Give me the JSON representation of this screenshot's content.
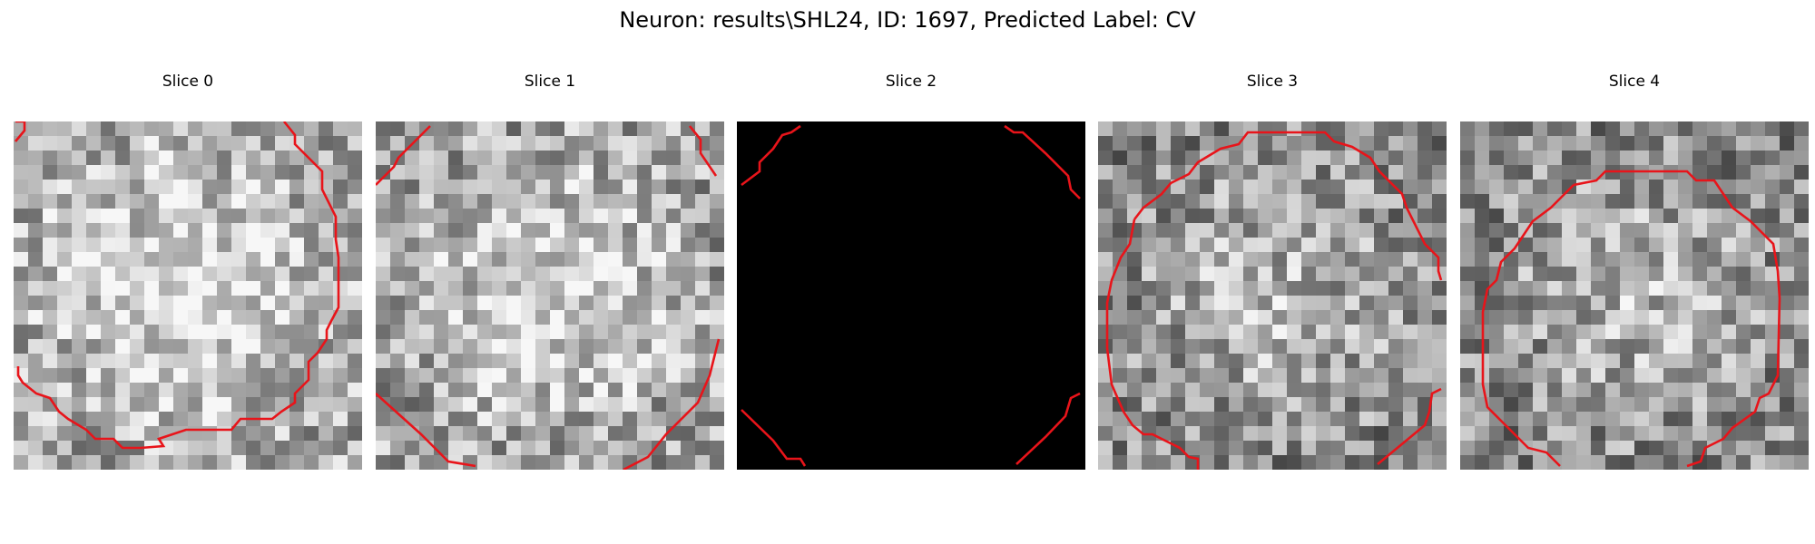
{
  "figure": {
    "title": "Neuron: results\\SHL24, ID: 1697, Predicted Label: CV"
  },
  "panels": [
    {
      "title": "Slice 0",
      "style": "noise",
      "seed": 11,
      "bright_center": 0.8
    },
    {
      "title": "Slice 1",
      "style": "noise",
      "seed": 23,
      "bright_center": 0.75
    },
    {
      "title": "Slice 2",
      "style": "black",
      "seed": 37,
      "bright_center": 0.0
    },
    {
      "title": "Slice 3",
      "style": "noise",
      "seed": 41,
      "bright_center": 0.6
    },
    {
      "title": "Slice 4",
      "style": "noise",
      "seed": 59,
      "bright_center": 0.6
    }
  ],
  "colors": {
    "contour": "#e8141a",
    "background": "#ffffff"
  }
}
